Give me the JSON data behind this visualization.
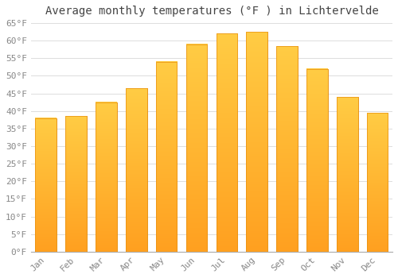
{
  "title": "Average monthly temperatures (°F ) in Lichtervelde",
  "months": [
    "Jan",
    "Feb",
    "Mar",
    "Apr",
    "May",
    "Jun",
    "Jul",
    "Aug",
    "Sep",
    "Oct",
    "Nov",
    "Dec"
  ],
  "values": [
    38,
    38.5,
    42.5,
    46.5,
    54,
    59,
    62,
    62.5,
    58.5,
    52,
    44,
    39.5
  ],
  "bar_color_top": "#FFCC44",
  "bar_color_bottom": "#FFA020",
  "bar_edge_color": "#E89010",
  "background_color": "#FFFFFF",
  "grid_color": "#DDDDDD",
  "tick_label_color": "#888888",
  "title_color": "#444444",
  "ylim": [
    0,
    65
  ],
  "yticks": [
    0,
    5,
    10,
    15,
    20,
    25,
    30,
    35,
    40,
    45,
    50,
    55,
    60,
    65
  ],
  "title_fontsize": 10,
  "tick_fontsize": 8,
  "bar_width": 0.7
}
